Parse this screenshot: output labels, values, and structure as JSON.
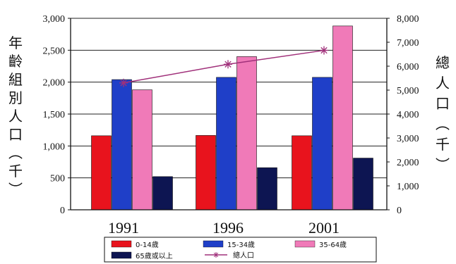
{
  "chart_data": {
    "type": "bar",
    "categories": [
      "1991",
      "1996",
      "2001"
    ],
    "series": [
      {
        "name": "0-14歲",
        "color": "#e8131d",
        "axis": "left",
        "values": [
          1160,
          1165,
          1160
        ]
      },
      {
        "name": "15-34歲",
        "color": "#1f3fc8",
        "axis": "left",
        "values": [
          2040,
          2075,
          2075
        ]
      },
      {
        "name": "35-64歲",
        "color": "#f07ab8",
        "axis": "left",
        "values": [
          1880,
          2400,
          2880
        ]
      },
      {
        "name": "65歲或以上",
        "color": "#0d1552",
        "axis": "left",
        "values": [
          520,
          660,
          810
        ]
      }
    ],
    "line_series": {
      "name": "總人口",
      "color": "#a0307a",
      "axis": "right",
      "marker": "star",
      "values": [
        5300,
        6080,
        6660
      ]
    },
    "ylabel": "年齡組別人口(千)",
    "y2label": "總人口(千)",
    "ylim": [
      0,
      3000
    ],
    "y2lim": [
      0,
      8000
    ],
    "yticks": [
      "0",
      "500",
      "1,000",
      "1,500",
      "2,000",
      "2,500",
      "3,000"
    ],
    "y2ticks": [
      "0",
      "1,000",
      "2,000",
      "3,000",
      "4,000",
      "5,000",
      "6,000",
      "7,000",
      "8,000"
    ],
    "grid": "horizontal",
    "legend": "bottom"
  }
}
